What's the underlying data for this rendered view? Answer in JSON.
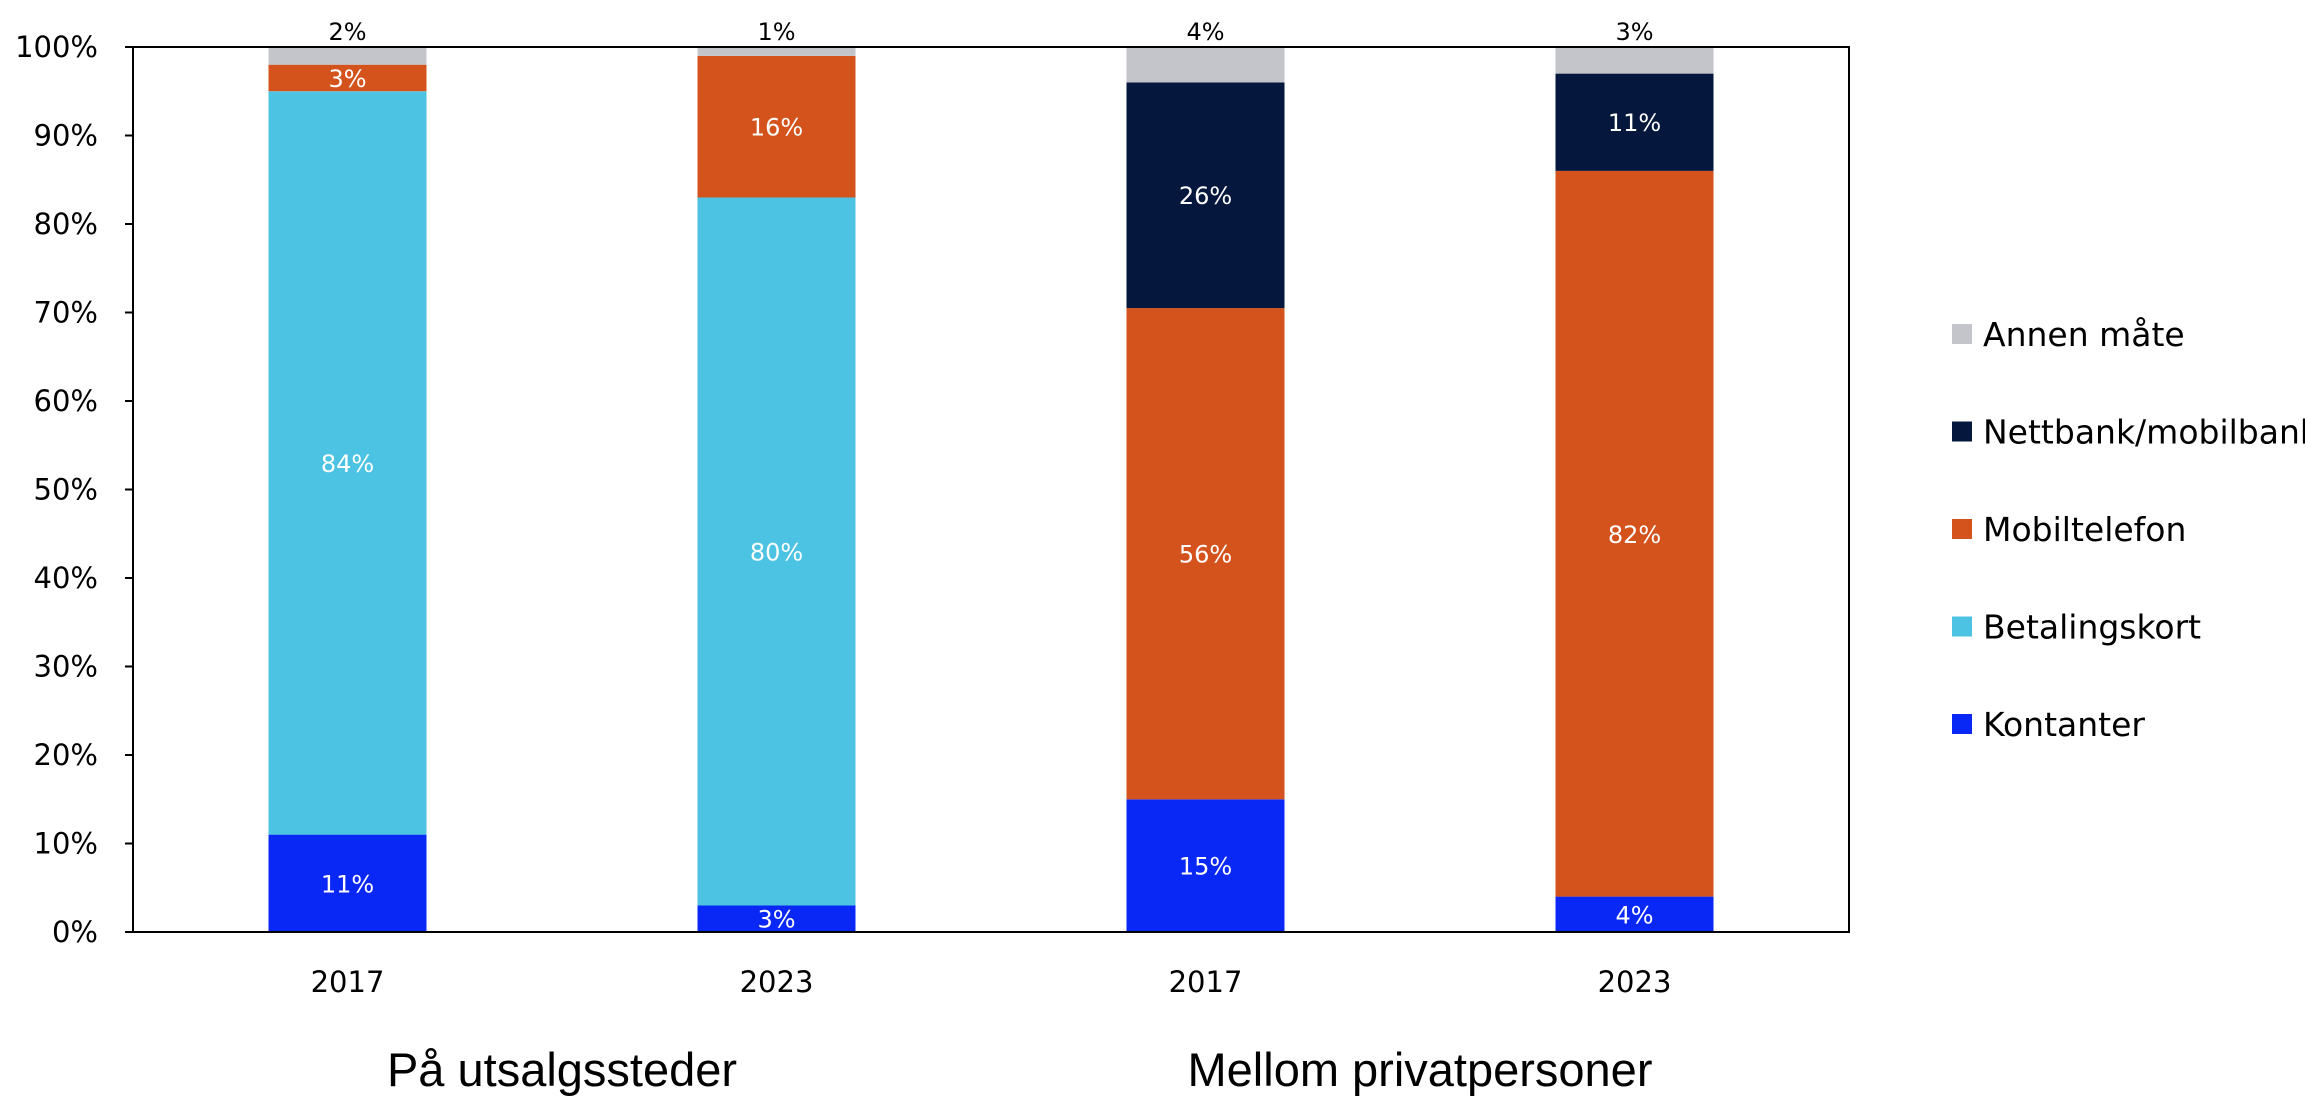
{
  "chart_data": {
    "type": "bar",
    "stacked": true,
    "title": "",
    "xlabel": "",
    "ylabel": "",
    "ylim": [
      0,
      100
    ],
    "y_ticks": [
      "0%",
      "10%",
      "20%",
      "30%",
      "40%",
      "50%",
      "60%",
      "70%",
      "80%",
      "90%",
      "100%"
    ],
    "grid": false,
    "legend_position": "right",
    "categories": [
      "2017",
      "2023",
      "2017",
      "2023"
    ],
    "groups": [
      {
        "label": "På utsalgssteder",
        "categories": [
          0,
          1
        ]
      },
      {
        "label": "Mellom privatpersoner",
        "categories": [
          2,
          3
        ]
      }
    ],
    "series": [
      {
        "name": "Kontanter",
        "color": "#0a28f5",
        "label_color": "#ffffff",
        "values": [
          11,
          3,
          15,
          4
        ],
        "labels": [
          "11%",
          "3%",
          "15%",
          "4%"
        ]
      },
      {
        "name": "Betalingskort",
        "color": "#4cc3e3",
        "label_color": "#ffffff",
        "values": [
          84,
          80,
          0,
          0
        ],
        "labels": [
          "84%",
          "80%",
          "",
          ""
        ]
      },
      {
        "name": "Mobiltelefon",
        "color": "#d4521b",
        "label_color": "#ffffff",
        "values": [
          3,
          16,
          55.5,
          82
        ],
        "labels": [
          "3%",
          "16%",
          "56%",
          "82%"
        ]
      },
      {
        "name": "Nettbank/mobilbank",
        "color": "#06173e",
        "label_color": "#ffffff",
        "values": [
          0,
          0,
          25.5,
          11
        ],
        "labels": [
          "",
          "",
          "26%",
          "11%"
        ]
      },
      {
        "name": "Annen måte",
        "color": "#c3c5cb",
        "label_color": "#000000",
        "values": [
          2,
          1,
          4,
          3
        ],
        "labels": [
          "2%",
          "1%",
          "4%",
          "3%"
        ]
      }
    ]
  }
}
